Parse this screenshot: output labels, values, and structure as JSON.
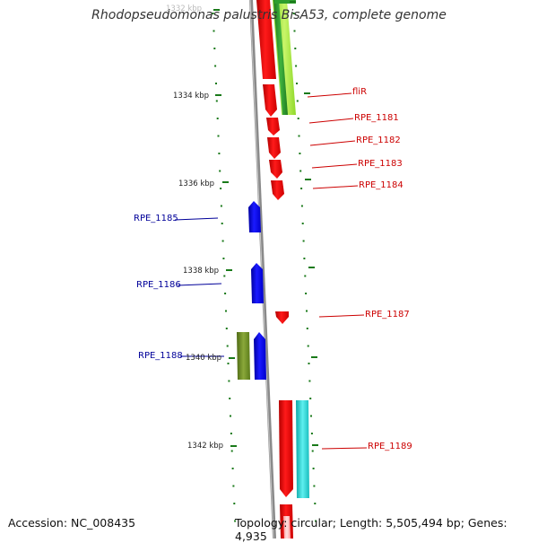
{
  "title": "Rhodopseudomonas palustris BisA53, complete genome",
  "accession": "Accession: NC_008435",
  "topology": "Topology: circular; Length: 5,505,494 bp; Genes: 4,935",
  "ticks": [
    "1332 kbp",
    "1334 kbp",
    "1336 kbp",
    "1338 kbp",
    "1340 kbp",
    "1342 kbp"
  ],
  "genes": [
    {
      "name": "fliR",
      "strand": "+",
      "color": "#ff0000"
    },
    {
      "name": "RPE_1181",
      "strand": "+",
      "color": "#ff0000"
    },
    {
      "name": "RPE_1182",
      "strand": "+",
      "color": "#ff0000"
    },
    {
      "name": "RPE_1183",
      "strand": "+",
      "color": "#ff0000"
    },
    {
      "name": "RPE_1184",
      "strand": "+",
      "color": "#ff0000"
    },
    {
      "name": "RPE_1185",
      "strand": "-",
      "color": "#0000ff"
    },
    {
      "name": "RPE_1186",
      "strand": "-",
      "color": "#0000ff"
    },
    {
      "name": "RPE_1187",
      "strand": "+",
      "color": "#ff0000"
    },
    {
      "name": "RPE_1188",
      "strand": "-",
      "color": "#0000ff"
    },
    {
      "name": "RPE_1189",
      "strand": "+",
      "color": "#ff0000"
    }
  ],
  "colors": {
    "forward_cds": "#ff0000",
    "reverse_cds": "#0000ff",
    "forward_label": "#cc0000",
    "reverse_label": "#000099",
    "backbone": "#8c8c8c",
    "tick": "#1a7a1a",
    "light_green_feature": "#9be22e",
    "olive_feature": "#6b8a23",
    "cyan_feature": "#22cccc"
  }
}
